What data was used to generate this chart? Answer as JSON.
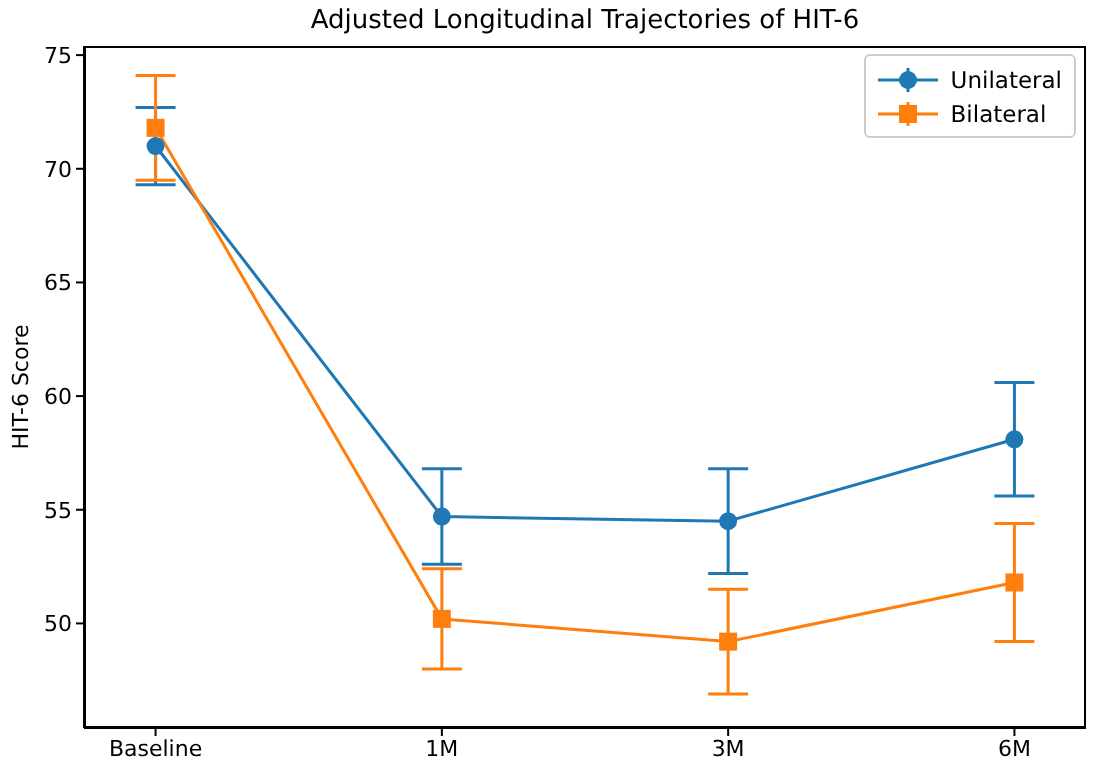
{
  "chart_data": {
    "type": "line",
    "title": "Adjusted Longitudinal Trajectories of HIT-6",
    "ylabel": "HIT-6 Score",
    "categories": [
      "Baseline",
      "1M",
      "3M",
      "6M"
    ],
    "series": [
      {
        "name": "Unilateral",
        "color": "#1f77b4",
        "marker": "circle",
        "values": [
          71.0,
          54.7,
          54.5,
          58.1
        ],
        "errors": [
          1.7,
          2.1,
          2.3,
          2.5
        ]
      },
      {
        "name": "Bilateral",
        "color": "#ff7f0e",
        "marker": "square",
        "values": [
          71.8,
          50.2,
          49.2,
          51.8
        ],
        "errors": [
          2.3,
          2.2,
          2.3,
          2.6
        ]
      }
    ],
    "ylim": [
      45.4,
      75.4
    ],
    "yticks": [
      50,
      55,
      60,
      65,
      70,
      75
    ],
    "grid": false,
    "legend": "top right"
  }
}
